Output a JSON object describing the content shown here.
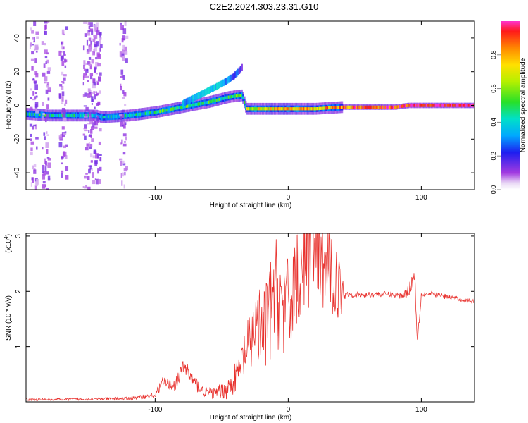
{
  "title": "C2E2.2024.303.23.31.G10",
  "colors": {
    "snr_line": "#e8322e",
    "axes": "#000000"
  },
  "chart_data": [
    {
      "type": "heatmap",
      "title": "C2E2.2024.303.23.31.G10",
      "xlabel": "Height of straight line (km)",
      "ylabel": "Frequency (Hz)",
      "xlim": [
        -197,
        140
      ],
      "ylim": [
        -50,
        50
      ],
      "xticks": [
        -100,
        0,
        100
      ],
      "yticks": [
        -40,
        -20,
        0,
        20,
        40
      ],
      "xticklabels": [
        "-100",
        "0",
        "100"
      ],
      "yticklabels": [
        "-40",
        "-20",
        "0",
        "20",
        "40"
      ],
      "colorbar": {
        "label": "Normalized spectral amplitude",
        "range": [
          0,
          1
        ],
        "ticks": [
          0.0,
          0.2,
          0.4,
          0.6,
          0.8
        ],
        "ticklabels": [
          "0.0",
          "0.2",
          "0.4",
          "0.6",
          "0.8"
        ],
        "colormap": "rainbow"
      },
      "ridge": {
        "x": [
          -197,
          -180,
          -160,
          -145,
          -140,
          -120,
          -100,
          -80,
          -60,
          -45,
          -35,
          -32,
          -20,
          0,
          20,
          40,
          60,
          80,
          90,
          100,
          120,
          140
        ],
        "freq": [
          -5,
          -6,
          -6,
          -6,
          -7,
          -6,
          -4,
          -1,
          2,
          5,
          6,
          -2,
          -2,
          -2,
          -2,
          -1,
          -1,
          -1,
          0,
          0,
          0,
          0
        ],
        "amplitude": [
          0.35,
          0.45,
          0.4,
          0.3,
          0.35,
          0.4,
          0.45,
          0.5,
          0.45,
          0.5,
          0.45,
          0.6,
          0.7,
          0.75,
          0.75,
          0.85,
          0.9,
          0.92,
          0.9,
          0.95,
          0.98,
          0.98
        ]
      },
      "branch": {
        "x": [
          -80,
          -65,
          -55,
          -48,
          -42,
          -38,
          -35
        ],
        "freq": [
          1,
          7,
          11,
          14,
          17,
          20,
          23
        ],
        "amplitude": [
          0.25,
          0.3,
          0.3,
          0.25,
          0.2,
          0.15,
          0.1
        ]
      },
      "noise_columns_x": [
        -192,
        -183,
        -170,
        -152,
        -148,
        -144,
        -125
      ],
      "grid": false
    },
    {
      "type": "line",
      "xlabel": "Height of straight line (km)",
      "ylabel": "SNR (10 * v/v)",
      "y_multiplier_label": "(x10",
      "y_multiplier_exponent": "4",
      "y_multiplier_close": ")",
      "xlim": [
        -197,
        140
      ],
      "ylim": [
        0,
        3.05
      ],
      "xticks": [
        -100,
        0,
        100
      ],
      "yticks": [
        1,
        2,
        3
      ],
      "xticklabels": [
        "-100",
        "0",
        "100"
      ],
      "yticklabels": [
        "1",
        "2",
        "3"
      ],
      "series": [
        {
          "x": [
            -197,
            -150,
            -120,
            -100,
            -95,
            -85,
            -78,
            -72,
            -65,
            -55,
            -45,
            -38,
            -32,
            -28,
            -25,
            -20,
            -15,
            -10,
            -5,
            0,
            5,
            10,
            15,
            18,
            20,
            25,
            30,
            35,
            40,
            42,
            45,
            55,
            65,
            75,
            85,
            90,
            95,
            97,
            100,
            110,
            120,
            130,
            140
          ],
          "y": [
            0.04,
            0.05,
            0.06,
            0.12,
            0.35,
            0.3,
            0.65,
            0.4,
            0.2,
            0.15,
            0.25,
            0.5,
            0.9,
            1.0,
            1.5,
            1.2,
            1.5,
            2.0,
            1.8,
            1.6,
            2.2,
            2.5,
            2.6,
            3.05,
            2.6,
            2.4,
            2.4,
            2.2,
            2.0,
            1.95,
            1.95,
            1.93,
            1.95,
            1.95,
            1.92,
            2.0,
            2.3,
            1.1,
            1.95,
            1.95,
            1.9,
            1.85,
            1.82
          ],
          "amplitude": [
            0.02,
            0.02,
            0.03,
            0.05,
            0.1,
            0.1,
            0.2,
            0.15,
            0.1,
            0.1,
            0.2,
            0.3,
            0.5,
            0.6,
            0.7,
            0.8,
            0.9,
            1.0,
            1.0,
            1.0,
            1.0,
            1.0,
            1.0,
            0.8,
            0.9,
            0.8,
            0.8,
            0.7,
            0.5,
            0.1,
            0.05,
            0.05,
            0.05,
            0.05,
            0.06,
            0.1,
            0.2,
            0.1,
            0.06,
            0.05,
            0.05,
            0.04,
            0.04
          ]
        }
      ],
      "grid": false
    }
  ]
}
